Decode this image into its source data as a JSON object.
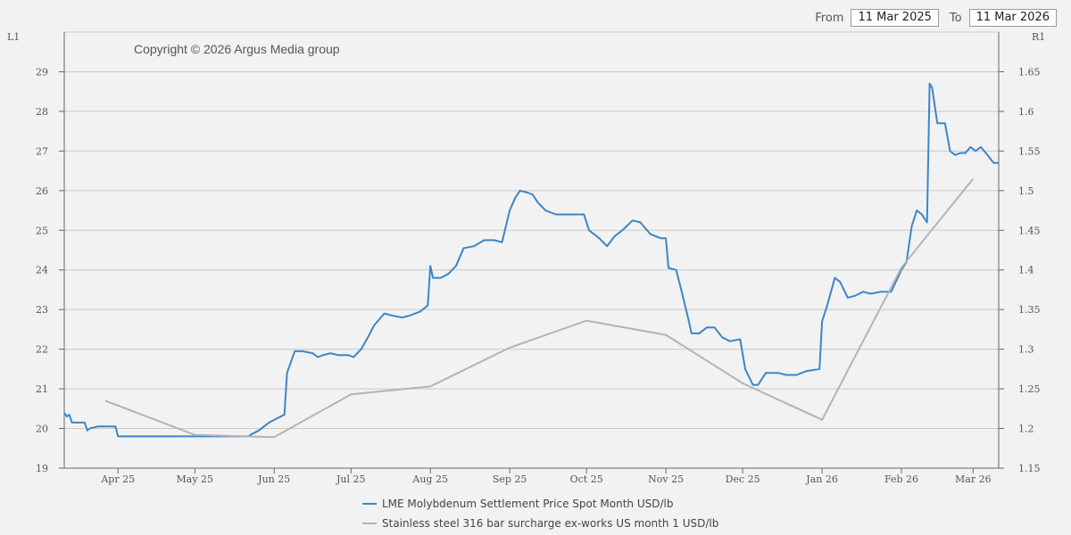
{
  "date_range": {
    "from_label": "From",
    "from_value": "11 Mar 2025",
    "to_label": "To",
    "to_value": "11 Mar 2026"
  },
  "colors": {
    "molybdenum": "#3d86c6",
    "stainless": "#b4b4b4",
    "grid": "#c8c8c8",
    "background": "#f2f2f2"
  },
  "chart_data": {
    "type": "line",
    "copyright": "Copyright © 2026 Argus Media group",
    "left_axis": {
      "title": "L1",
      "min": 19,
      "max": 30,
      "ticks": [
        "19",
        "20",
        "21",
        "22",
        "23",
        "24",
        "25",
        "26",
        "27",
        "28",
        "29"
      ]
    },
    "right_axis": {
      "title": "R1",
      "min": 1.15,
      "max": 1.7,
      "ticks": [
        "1.15",
        "1.2",
        "1.25",
        "1.3",
        "1.35",
        "1.4",
        "1.45",
        "1.5",
        "1.55",
        "1.6",
        "1.65"
      ]
    },
    "x_range": [
      "2025-03-11",
      "2026-03-11"
    ],
    "x_ticks": [
      {
        "label": "Apr 25",
        "date": "2025-04-01"
      },
      {
        "label": "May 25",
        "date": "2025-05-01"
      },
      {
        "label": "Jun 25",
        "date": "2025-06-01"
      },
      {
        "label": "Jul 25",
        "date": "2025-07-01"
      },
      {
        "label": "Aug 25",
        "date": "2025-08-01"
      },
      {
        "label": "Sep 25",
        "date": "2025-09-01"
      },
      {
        "label": "Oct 25",
        "date": "2025-10-01"
      },
      {
        "label": "Nov 25",
        "date": "2025-11-01"
      },
      {
        "label": "Dec 25",
        "date": "2025-12-01"
      },
      {
        "label": "Jan 26",
        "date": "2026-01-01"
      },
      {
        "label": "Feb 26",
        "date": "2026-02-01"
      },
      {
        "label": "Mar 26",
        "date": "2026-03-01"
      }
    ],
    "grid": true,
    "legend_position": "bottom-center",
    "series": [
      {
        "name": "LME Molybdenum Settlement Price Spot Month USD/lb",
        "axis": "left",
        "points": [
          [
            "2025-03-11",
            20.4
          ],
          [
            "2025-03-12",
            20.3
          ],
          [
            "2025-03-13",
            20.35
          ],
          [
            "2025-03-14",
            20.15
          ],
          [
            "2025-03-17",
            20.15
          ],
          [
            "2025-03-19",
            20.15
          ],
          [
            "2025-03-20",
            19.95
          ],
          [
            "2025-03-21",
            20.0
          ],
          [
            "2025-03-24",
            20.05
          ],
          [
            "2025-03-28",
            20.05
          ],
          [
            "2025-03-31",
            20.05
          ],
          [
            "2025-04-01",
            19.8
          ],
          [
            "2025-04-07",
            19.8
          ],
          [
            "2025-04-15",
            19.8
          ],
          [
            "2025-04-25",
            19.8
          ],
          [
            "2025-05-05",
            19.8
          ],
          [
            "2025-05-15",
            19.8
          ],
          [
            "2025-05-22",
            19.8
          ],
          [
            "2025-05-23",
            19.85
          ],
          [
            "2025-05-26",
            19.95
          ],
          [
            "2025-05-28",
            20.05
          ],
          [
            "2025-05-30",
            20.15
          ],
          [
            "2025-06-02",
            20.25
          ],
          [
            "2025-06-05",
            20.35
          ],
          [
            "2025-06-06",
            21.4
          ],
          [
            "2025-06-09",
            21.95
          ],
          [
            "2025-06-12",
            21.95
          ],
          [
            "2025-06-16",
            21.9
          ],
          [
            "2025-06-18",
            21.8
          ],
          [
            "2025-06-20",
            21.85
          ],
          [
            "2025-06-23",
            21.9
          ],
          [
            "2025-06-26",
            21.85
          ],
          [
            "2025-06-30",
            21.85
          ],
          [
            "2025-07-02",
            21.8
          ],
          [
            "2025-07-05",
            22.0
          ],
          [
            "2025-07-08",
            22.35
          ],
          [
            "2025-07-10",
            22.6
          ],
          [
            "2025-07-14",
            22.9
          ],
          [
            "2025-07-17",
            22.85
          ],
          [
            "2025-07-21",
            22.8
          ],
          [
            "2025-07-24",
            22.85
          ],
          [
            "2025-07-28",
            22.95
          ],
          [
            "2025-07-31",
            23.1
          ],
          [
            "2025-08-01",
            24.1
          ],
          [
            "2025-08-02",
            23.8
          ],
          [
            "2025-08-05",
            23.8
          ],
          [
            "2025-08-08",
            23.9
          ],
          [
            "2025-08-11",
            24.1
          ],
          [
            "2025-08-14",
            24.55
          ],
          [
            "2025-08-18",
            24.6
          ],
          [
            "2025-08-22",
            24.75
          ],
          [
            "2025-08-26",
            24.75
          ],
          [
            "2025-08-29",
            24.7
          ],
          [
            "2025-09-01",
            25.5
          ],
          [
            "2025-09-03",
            25.8
          ],
          [
            "2025-09-05",
            26.0
          ],
          [
            "2025-09-08",
            25.95
          ],
          [
            "2025-09-10",
            25.9
          ],
          [
            "2025-09-12",
            25.7
          ],
          [
            "2025-09-15",
            25.5
          ],
          [
            "2025-09-19",
            25.4
          ],
          [
            "2025-09-24",
            25.4
          ],
          [
            "2025-09-30",
            25.4
          ],
          [
            "2025-10-02",
            25.0
          ],
          [
            "2025-10-06",
            24.8
          ],
          [
            "2025-10-09",
            24.6
          ],
          [
            "2025-10-12",
            24.85
          ],
          [
            "2025-10-15",
            25.0
          ],
          [
            "2025-10-19",
            25.25
          ],
          [
            "2025-10-22",
            25.2
          ],
          [
            "2025-10-26",
            24.9
          ],
          [
            "2025-10-30",
            24.8
          ],
          [
            "2025-11-01",
            24.8
          ],
          [
            "2025-11-02",
            24.05
          ],
          [
            "2025-11-05",
            24.0
          ],
          [
            "2025-11-07",
            23.5
          ],
          [
            "2025-11-10",
            22.7
          ],
          [
            "2025-11-11",
            22.4
          ],
          [
            "2025-11-14",
            22.4
          ],
          [
            "2025-11-17",
            22.55
          ],
          [
            "2025-11-20",
            22.55
          ],
          [
            "2025-11-23",
            22.3
          ],
          [
            "2025-11-26",
            22.2
          ],
          [
            "2025-11-30",
            22.25
          ],
          [
            "2025-12-02",
            21.5
          ],
          [
            "2025-12-05",
            21.1
          ],
          [
            "2025-12-07",
            21.1
          ],
          [
            "2025-12-10",
            21.4
          ],
          [
            "2025-12-15",
            21.4
          ],
          [
            "2025-12-18",
            21.35
          ],
          [
            "2025-12-22",
            21.35
          ],
          [
            "2025-12-26",
            21.45
          ],
          [
            "2025-12-31",
            21.5
          ],
          [
            "2026-01-01",
            22.7
          ],
          [
            "2026-01-03",
            23.1
          ],
          [
            "2026-01-06",
            23.8
          ],
          [
            "2026-01-08",
            23.7
          ],
          [
            "2026-01-11",
            23.3
          ],
          [
            "2026-01-14",
            23.35
          ],
          [
            "2026-01-17",
            23.45
          ],
          [
            "2026-01-20",
            23.4
          ],
          [
            "2026-01-24",
            23.45
          ],
          [
            "2026-01-28",
            23.45
          ],
          [
            "2026-02-01",
            24.0
          ],
          [
            "2026-02-03",
            24.2
          ],
          [
            "2026-02-05",
            25.1
          ],
          [
            "2026-02-07",
            25.5
          ],
          [
            "2026-02-09",
            25.4
          ],
          [
            "2026-02-11",
            25.2
          ],
          [
            "2026-02-12",
            28.7
          ],
          [
            "2026-02-13",
            28.6
          ],
          [
            "2026-02-15",
            27.7
          ],
          [
            "2026-02-18",
            27.7
          ],
          [
            "2026-02-20",
            27.0
          ],
          [
            "2026-02-22",
            26.9
          ],
          [
            "2026-02-24",
            26.95
          ],
          [
            "2026-02-26",
            26.95
          ],
          [
            "2026-02-28",
            27.1
          ],
          [
            "2026-03-02",
            27.0
          ],
          [
            "2026-03-04",
            27.1
          ],
          [
            "2026-03-06",
            26.95
          ],
          [
            "2026-03-09",
            26.7
          ],
          [
            "2026-03-11",
            26.7
          ]
        ]
      },
      {
        "name": "Stainless steel 316 bar surcharge ex-works US month 1 USD/lb",
        "axis": "right",
        "points": [
          [
            "2025-03-27",
            1.235
          ],
          [
            "2025-05-01",
            1.192
          ],
          [
            "2025-06-01",
            1.189
          ],
          [
            "2025-07-01",
            1.243
          ],
          [
            "2025-08-01",
            1.253
          ],
          [
            "2025-09-01",
            1.302
          ],
          [
            "2025-10-01",
            1.336
          ],
          [
            "2025-11-01",
            1.318
          ],
          [
            "2025-12-01",
            1.257
          ],
          [
            "2026-01-01",
            1.211
          ],
          [
            "2026-02-01",
            1.403
          ],
          [
            "2026-03-01",
            1.515
          ]
        ]
      }
    ]
  }
}
